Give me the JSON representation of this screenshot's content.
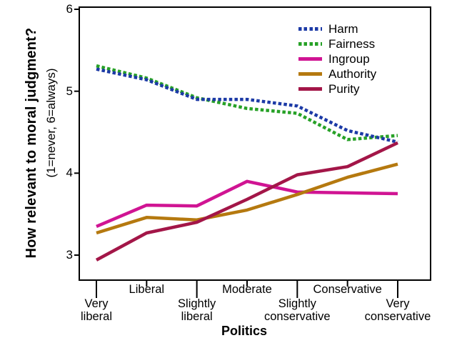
{
  "chart_data": {
    "type": "line",
    "x_title": "Politics",
    "y_title": "How relevant to moral judgment?",
    "y_subtitle": "(1=never, 6=always)",
    "categories": [
      "Very liberal",
      "Liberal",
      "Slightly liberal",
      "Moderate",
      "Slightly conservative",
      "Conservative",
      "Very conservative"
    ],
    "category_label_lines": [
      [
        "Very",
        "liberal"
      ],
      [
        "Liberal"
      ],
      [
        "Slightly",
        "liberal"
      ],
      [
        "Moderate"
      ],
      [
        "Slightly",
        "conservative"
      ],
      [
        "Conservative"
      ],
      [
        "Very",
        "conservative"
      ]
    ],
    "yticks": [
      3,
      4,
      5,
      6
    ],
    "ylim": [
      2.7,
      6.03
    ],
    "grid": false,
    "legend_position": "top-right-inside",
    "axis_color": "#000000",
    "background_color": "#ffffff",
    "series": [
      {
        "name": "Harm",
        "color": "#1c3aa6",
        "style": "dashed",
        "values": [
          5.27,
          5.14,
          4.9,
          4.9,
          4.82,
          4.52,
          4.38
        ]
      },
      {
        "name": "Fairness",
        "color": "#27a127",
        "style": "dashed",
        "values": [
          5.31,
          5.16,
          4.92,
          4.79,
          4.73,
          4.41,
          4.46
        ]
      },
      {
        "name": "Ingroup",
        "color": "#d01493",
        "style": "solid",
        "values": [
          3.35,
          3.61,
          3.6,
          3.9,
          3.77,
          3.76,
          3.75
        ]
      },
      {
        "name": "Authority",
        "color": "#b5790f",
        "style": "solid",
        "values": [
          3.27,
          3.46,
          3.43,
          3.55,
          3.74,
          3.95,
          4.11
        ]
      },
      {
        "name": "Purity",
        "color": "#a31648",
        "style": "solid",
        "values": [
          2.94,
          3.27,
          3.4,
          3.68,
          3.98,
          4.08,
          4.37
        ]
      }
    ]
  }
}
